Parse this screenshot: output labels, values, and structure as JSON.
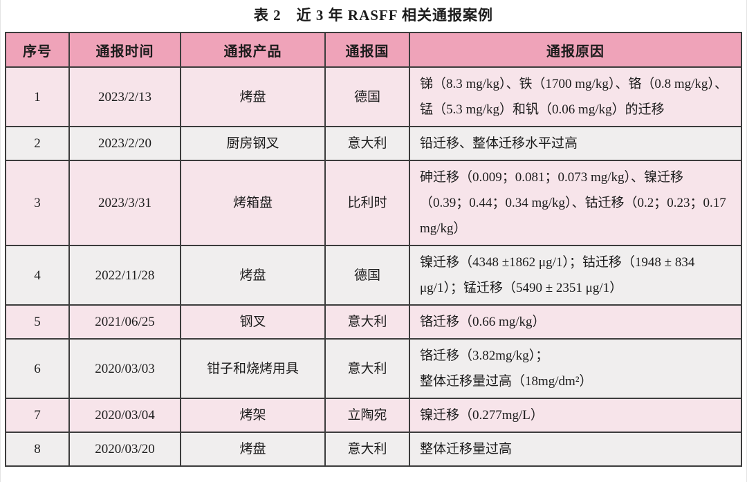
{
  "page": {
    "title": "表 2　近 3 年 RASFF 相关通报案例"
  },
  "colors": {
    "header_bg": "#efa3b9",
    "row_pink": "#f7e4ea",
    "row_gray": "#f0eeee",
    "border": "#3c3c3c",
    "text": "#1c1c1c"
  },
  "table": {
    "headers": [
      "序号",
      "通报时间",
      "通报产品",
      "通报国",
      "通报原因"
    ],
    "rows": [
      {
        "no": "1",
        "date": "2023/2/13",
        "product": "烤盘",
        "country": "德国",
        "reason": "锑（8.3 mg/kg）、铁（1700 mg/kg）、铬（0.8 mg/kg）、锰（5.3 mg/kg）和钒（0.06 mg/kg）的迁移"
      },
      {
        "no": "2",
        "date": "2023/2/20",
        "product": "厨房钢叉",
        "country": "意大利",
        "reason": "铅迁移、整体迁移水平过高"
      },
      {
        "no": "3",
        "date": "2023/3/31",
        "product": "烤箱盘",
        "country": "比利时",
        "reason": "砷迁移（0.009；0.081；0.073 mg/kg）、镍迁移（0.39；0.44；0.34 mg/kg）、钴迁移（0.2；0.23；0.17 mg/kg）"
      },
      {
        "no": "4",
        "date": "2022/11/28",
        "product": "烤盘",
        "country": "德国",
        "reason": "镍迁移（4348 ±1862 μg/1）；钴迁移（1948 ± 834 μg/1）；锰迁移（5490 ± 2351 μg/1）"
      },
      {
        "no": "5",
        "date": "2021/06/25",
        "product": "钢叉",
        "country": "意大利",
        "reason": "铬迁移（0.66 mg/kg）"
      },
      {
        "no": "6",
        "date": "2020/03/03",
        "product": "钳子和烧烤用具",
        "country": "意大利",
        "reason": "铬迁移（3.82mg/kg）；\n整体迁移量过高（18mg/dm²）"
      },
      {
        "no": "7",
        "date": "2020/03/04",
        "product": "烤架",
        "country": "立陶宛",
        "reason": "镍迁移（0.277mg/L）"
      },
      {
        "no": "8",
        "date": "2020/03/20",
        "product": "烤盘",
        "country": "意大利",
        "reason": "整体迁移量过高"
      }
    ]
  }
}
